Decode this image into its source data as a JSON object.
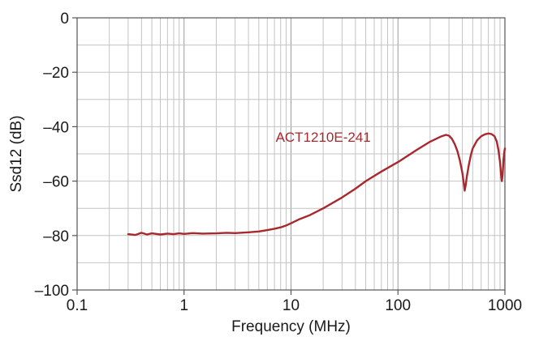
{
  "chart_data": {
    "type": "line",
    "xscale": "log",
    "xlim": [
      0.1,
      1000
    ],
    "ylim": [
      -100,
      0
    ],
    "xlabel": "Frequency (MHz)",
    "ylabel": "Ssd12 (dB)",
    "grid": true,
    "x_ticks": [
      {
        "value": 0.1,
        "label": "0.1"
      },
      {
        "value": 1,
        "label": "1"
      },
      {
        "value": 10,
        "label": "10"
      },
      {
        "value": 100,
        "label": "100"
      },
      {
        "value": 1000,
        "label": "1000"
      }
    ],
    "y_ticks": [
      {
        "value": 0,
        "label": "0"
      },
      {
        "value": -20,
        "label": "–20"
      },
      {
        "value": -40,
        "label": "–40"
      },
      {
        "value": -60,
        "label": "–60"
      },
      {
        "value": -80,
        "label": "–80"
      },
      {
        "value": -100,
        "label": "–100"
      }
    ],
    "series": [
      {
        "name": "ACT1210E-241",
        "color": "#a8282e",
        "label_at": [
          20,
          -45.5
        ],
        "x": [
          0.3,
          0.35,
          0.4,
          0.45,
          0.5,
          0.6,
          0.7,
          0.8,
          0.9,
          1,
          1.2,
          1.5,
          2,
          2.5,
          3,
          4,
          5,
          6,
          7,
          8,
          9,
          10,
          12,
          15,
          20,
          30,
          40,
          50,
          70,
          100,
          150,
          200,
          250,
          280,
          300,
          320,
          340,
          360,
          380,
          400,
          410,
          420,
          430,
          440,
          460,
          480,
          500,
          550,
          600,
          650,
          700,
          750,
          800,
          840,
          870,
          900,
          920,
          935,
          950,
          970,
          990,
          1000
        ],
        "y": [
          -79.5,
          -79.8,
          -79.0,
          -79.6,
          -79.2,
          -79.6,
          -79.3,
          -79.5,
          -79.2,
          -79.4,
          -79.1,
          -79.3,
          -79.2,
          -79.0,
          -79.1,
          -78.8,
          -78.5,
          -78.0,
          -77.5,
          -77.0,
          -76.3,
          -75.5,
          -74.0,
          -72.5,
          -70.0,
          -66.0,
          -62.8,
          -60.0,
          -56.5,
          -53.0,
          -48.5,
          -45.5,
          -43.7,
          -43.0,
          -43.3,
          -44.5,
          -46.5,
          -49.0,
          -52.5,
          -57.0,
          -60.0,
          -63.5,
          -61.5,
          -58.5,
          -54.0,
          -50.5,
          -48.0,
          -45.0,
          -43.5,
          -42.8,
          -42.5,
          -42.7,
          -43.5,
          -45.5,
          -48.5,
          -53.0,
          -57.5,
          -60.0,
          -58.0,
          -52.0,
          -49.0,
          -48.0
        ]
      }
    ]
  }
}
